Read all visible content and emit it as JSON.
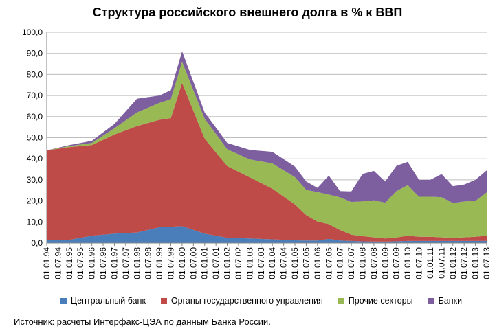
{
  "chart_data": {
    "type": "area",
    "stacked": true,
    "title": "Структура российского внешнего долга в % к ВВП",
    "ylim": [
      0,
      100
    ],
    "yticks": [
      "0,0",
      "10,0",
      "20,0",
      "30,0",
      "40,0",
      "50,0",
      "60,0",
      "70,0",
      "80,0",
      "90,0",
      "100,0"
    ],
    "grid": true,
    "legend_position": "bottom",
    "categories": [
      "01.01.94",
      "01.07.94",
      "01.01.95",
      "01.07.95",
      "01.01.96",
      "01.07.96",
      "01.01.97",
      "01.07.97",
      "01.01.98",
      "01.07.98",
      "01.01.99",
      "01.07.99",
      "01.01.00",
      "01.07.00",
      "01.01.01",
      "01.07.01",
      "01.01.02",
      "01.07.02",
      "01.01.03",
      "01.07.03",
      "01.01.04",
      "01.07.04",
      "01.01.05",
      "01.07.05",
      "01.01.06",
      "01.07.06",
      "01.01.07",
      "01.07.07",
      "01.01.08",
      "01.07.08",
      "01.01.09",
      "01.07.09",
      "01.01.10",
      "01.07.10",
      "01.01.11",
      "01.07.11",
      "01.01.12",
      "01.07.12",
      "01.01.13",
      "01.07.13"
    ],
    "x": [
      0,
      1,
      2,
      3,
      4,
      5,
      6,
      7,
      8,
      9,
      10,
      11,
      12,
      13,
      14,
      15,
      16,
      17,
      18,
      19,
      20,
      21,
      22,
      23,
      24,
      25,
      26,
      27,
      28,
      29,
      30,
      31,
      32,
      33,
      34,
      35,
      36,
      37,
      38,
      39
    ],
    "series": [
      {
        "name": "Центральный банк",
        "color": "#4a7ebb",
        "points": [
          [
            0,
            1.5
          ],
          [
            2,
            1.5
          ],
          [
            4,
            3.5
          ],
          [
            6,
            4.5
          ],
          [
            8,
            5.0
          ],
          [
            10,
            7.5
          ],
          [
            12,
            8.0
          ],
          [
            14,
            4.5
          ],
          [
            16,
            2.5
          ],
          [
            18,
            2.2
          ],
          [
            20,
            1.8
          ],
          [
            22,
            1.3
          ],
          [
            24,
            1.2
          ],
          [
            25,
            2.0
          ],
          [
            26,
            1.2
          ],
          [
            28,
            0.8
          ],
          [
            30,
            0.7
          ],
          [
            32,
            1.0
          ],
          [
            34,
            1.0
          ],
          [
            36,
            1.0
          ],
          [
            38,
            1.0
          ],
          [
            39,
            1.0
          ]
        ]
      },
      {
        "name": "Органы государственного управления",
        "color": "#be4b48",
        "points": [
          [
            0,
            42.5
          ],
          [
            2,
            44.0
          ],
          [
            4,
            43.0
          ],
          [
            6,
            47.0
          ],
          [
            8,
            50.5
          ],
          [
            10,
            51.0
          ],
          [
            11,
            51.5
          ],
          [
            12,
            68.0
          ],
          [
            14,
            45.0
          ],
          [
            16,
            34.0
          ],
          [
            18,
            29.0
          ],
          [
            20,
            24.0
          ],
          [
            22,
            17.0
          ],
          [
            23,
            12.0
          ],
          [
            24,
            9.0
          ],
          [
            26,
            5.0
          ],
          [
            27,
            3.0
          ],
          [
            28,
            2.5
          ],
          [
            30,
            1.5
          ],
          [
            31,
            1.8
          ],
          [
            32,
            2.5
          ],
          [
            33,
            2.0
          ],
          [
            34,
            2.0
          ],
          [
            36,
            1.5
          ],
          [
            38,
            2.0
          ],
          [
            39,
            2.5
          ]
        ]
      },
      {
        "name": "Прочие секторы",
        "color": "#98b954",
        "points": [
          [
            0,
            0.0
          ],
          [
            2,
            0.5
          ],
          [
            4,
            1.0
          ],
          [
            6,
            3.0
          ],
          [
            8,
            6.5
          ],
          [
            10,
            8.0
          ],
          [
            12,
            10.0
          ],
          [
            14,
            9.5
          ],
          [
            16,
            8.0
          ],
          [
            18,
            8.5
          ],
          [
            20,
            12.0
          ],
          [
            22,
            13.0
          ],
          [
            23,
            12.0
          ],
          [
            24,
            14.0
          ],
          [
            25,
            14.0
          ],
          [
            26,
            15.5
          ],
          [
            27,
            15.5
          ],
          [
            28,
            16.5
          ],
          [
            29,
            17.5
          ],
          [
            30,
            17.0
          ],
          [
            31,
            22.0
          ],
          [
            32,
            24.0
          ],
          [
            33,
            19.0
          ],
          [
            34,
            19.0
          ],
          [
            35,
            19.0
          ],
          [
            36,
            16.5
          ],
          [
            37,
            17.0
          ],
          [
            38,
            17.0
          ],
          [
            39,
            20.5
          ]
        ]
      },
      {
        "name": "Банки",
        "color": "#7d5fa0",
        "points": [
          [
            0,
            0.0
          ],
          [
            2,
            0.5
          ],
          [
            4,
            1.0
          ],
          [
            6,
            2.0
          ],
          [
            8,
            6.5
          ],
          [
            10,
            3.5
          ],
          [
            12,
            5.0
          ],
          [
            14,
            3.0
          ],
          [
            16,
            3.0
          ],
          [
            18,
            4.5
          ],
          [
            20,
            5.5
          ],
          [
            22,
            5.0
          ],
          [
            23,
            4.0
          ],
          [
            24,
            2.0
          ],
          [
            25,
            9.0
          ],
          [
            26,
            3.0
          ],
          [
            27,
            5.0
          ],
          [
            28,
            13.0
          ],
          [
            29,
            14.0
          ],
          [
            30,
            10.0
          ],
          [
            31,
            12.0
          ],
          [
            32,
            11.0
          ],
          [
            33,
            8.0
          ],
          [
            34,
            8.0
          ],
          [
            35,
            11.0
          ],
          [
            36,
            8.0
          ],
          [
            37,
            8.0
          ],
          [
            38,
            10.0
          ],
          [
            39,
            10.5
          ]
        ]
      }
    ]
  },
  "source": "Источник: расчеты Интерфакс-ЦЭА по данным Банка России."
}
